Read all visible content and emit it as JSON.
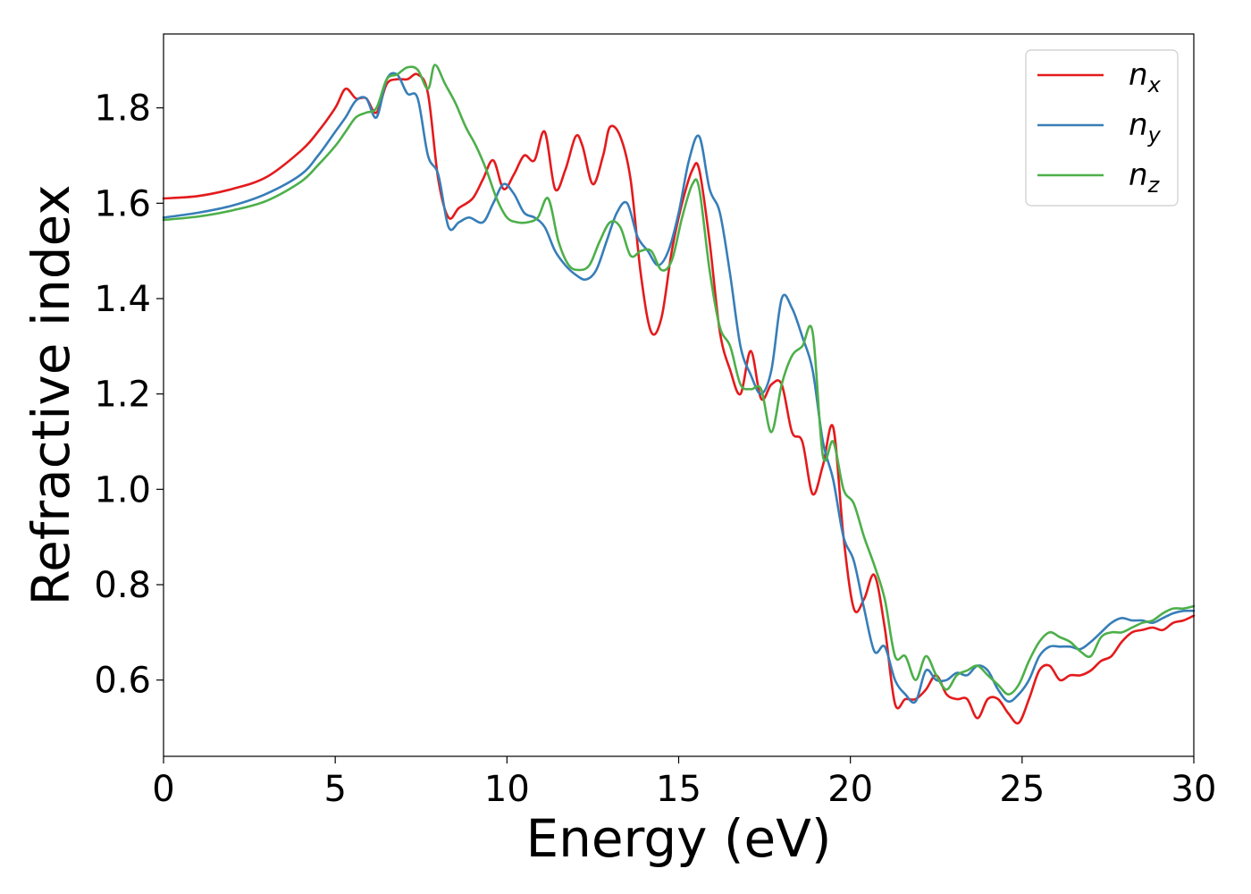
{
  "chart_data": {
    "type": "line",
    "title": "",
    "xlabel": "Energy (eV)",
    "ylabel": "Refractive index",
    "xlim": [
      0,
      30
    ],
    "ylim": [
      0.44,
      1.955
    ],
    "xticks": [
      0,
      5,
      10,
      15,
      20,
      25,
      30
    ],
    "xtick_labels": [
      "0",
      "5",
      "10",
      "15",
      "20",
      "25",
      "30"
    ],
    "yticks": [
      0.6,
      0.8,
      1.0,
      1.2,
      1.4,
      1.6,
      1.8
    ],
    "ytick_labels": [
      "0.6",
      "0.8",
      "1.0",
      "1.2",
      "1.4",
      "1.6",
      "1.8"
    ],
    "grid": false,
    "legend_position": "top-right",
    "series": [
      {
        "name": "n",
        "subscript": "x",
        "color": "#e41a1c",
        "x": [
          0,
          1,
          2,
          3,
          4,
          4.5,
          5,
          5.3,
          5.6,
          5.9,
          6.2,
          6.5,
          6.8,
          7.1,
          7.4,
          7.7,
          8.0,
          8.3,
          8.6,
          9.0,
          9.3,
          9.6,
          9.9,
          10.2,
          10.5,
          10.8,
          11.1,
          11.4,
          11.7,
          12.0,
          12.2,
          12.5,
          12.8,
          13.0,
          13.3,
          13.6,
          13.9,
          14.2,
          14.5,
          14.8,
          15.1,
          15.4,
          15.6,
          15.9,
          16.2,
          16.5,
          16.8,
          17.1,
          17.4,
          17.7,
          18.0,
          18.3,
          18.6,
          18.9,
          19.2,
          19.5,
          19.8,
          20.1,
          20.4,
          20.7,
          21.0,
          21.3,
          21.6,
          21.9,
          22.2,
          22.5,
          22.8,
          23.1,
          23.4,
          23.7,
          24.0,
          24.3,
          24.6,
          24.9,
          25.2,
          25.5,
          25.8,
          26.1,
          26.4,
          26.7,
          27.0,
          27.3,
          27.6,
          27.9,
          28.2,
          28.5,
          28.8,
          29.1,
          29.4,
          29.7,
          30.0
        ],
        "y": [
          1.61,
          1.615,
          1.63,
          1.655,
          1.71,
          1.75,
          1.8,
          1.84,
          1.82,
          1.82,
          1.79,
          1.85,
          1.86,
          1.86,
          1.87,
          1.83,
          1.65,
          1.57,
          1.59,
          1.61,
          1.65,
          1.69,
          1.63,
          1.66,
          1.7,
          1.69,
          1.75,
          1.63,
          1.67,
          1.74,
          1.72,
          1.64,
          1.7,
          1.76,
          1.74,
          1.65,
          1.45,
          1.33,
          1.36,
          1.5,
          1.6,
          1.67,
          1.67,
          1.52,
          1.33,
          1.25,
          1.2,
          1.29,
          1.19,
          1.22,
          1.22,
          1.12,
          1.1,
          0.99,
          1.05,
          1.13,
          0.9,
          0.75,
          0.77,
          0.82,
          0.71,
          0.55,
          0.56,
          0.56,
          0.58,
          0.61,
          0.57,
          0.56,
          0.56,
          0.52,
          0.56,
          0.56,
          0.53,
          0.51,
          0.56,
          0.62,
          0.63,
          0.6,
          0.61,
          0.61,
          0.62,
          0.64,
          0.65,
          0.68,
          0.7,
          0.705,
          0.71,
          0.705,
          0.72,
          0.725,
          0.735
        ]
      },
      {
        "name": "n",
        "subscript": "y",
        "color": "#377eb8",
        "x": [
          0,
          1,
          2,
          3,
          4,
          4.5,
          5,
          5.3,
          5.6,
          5.9,
          6.2,
          6.5,
          6.8,
          7.1,
          7.4,
          7.7,
          8.0,
          8.3,
          8.6,
          8.9,
          9.3,
          9.6,
          9.9,
          10.2,
          10.5,
          10.8,
          11.1,
          11.4,
          11.7,
          12.0,
          12.3,
          12.6,
          12.9,
          13.2,
          13.5,
          13.8,
          14.1,
          14.4,
          14.7,
          15.0,
          15.3,
          15.6,
          15.9,
          16.2,
          16.5,
          16.8,
          17.1,
          17.4,
          17.7,
          18.0,
          18.3,
          18.6,
          18.9,
          19.2,
          19.5,
          19.8,
          20.1,
          20.4,
          20.7,
          21.0,
          21.3,
          21.6,
          21.9,
          22.2,
          22.5,
          22.8,
          23.1,
          23.4,
          23.7,
          24.0,
          24.3,
          24.6,
          24.9,
          25.2,
          25.5,
          25.8,
          26.1,
          26.4,
          26.7,
          27.0,
          27.3,
          27.6,
          27.9,
          28.2,
          28.5,
          28.8,
          29.1,
          29.4,
          29.7,
          30.0
        ],
        "y": [
          1.57,
          1.58,
          1.595,
          1.62,
          1.66,
          1.7,
          1.75,
          1.78,
          1.815,
          1.82,
          1.78,
          1.86,
          1.87,
          1.83,
          1.82,
          1.7,
          1.66,
          1.55,
          1.56,
          1.57,
          1.56,
          1.6,
          1.64,
          1.62,
          1.58,
          1.57,
          1.55,
          1.5,
          1.47,
          1.45,
          1.44,
          1.46,
          1.52,
          1.58,
          1.6,
          1.53,
          1.5,
          1.47,
          1.5,
          1.58,
          1.69,
          1.74,
          1.63,
          1.58,
          1.45,
          1.3,
          1.24,
          1.2,
          1.25,
          1.4,
          1.38,
          1.32,
          1.25,
          1.1,
          1.02,
          0.9,
          0.85,
          0.75,
          0.66,
          0.67,
          0.6,
          0.57,
          0.555,
          0.62,
          0.6,
          0.6,
          0.615,
          0.61,
          0.63,
          0.62,
          0.58,
          0.555,
          0.57,
          0.6,
          0.65,
          0.67,
          0.67,
          0.67,
          0.665,
          0.68,
          0.7,
          0.72,
          0.73,
          0.725,
          0.725,
          0.72,
          0.73,
          0.74,
          0.745,
          0.745
        ]
      },
      {
        "name": "n",
        "subscript": "z",
        "color": "#4daf4a",
        "x": [
          0,
          1,
          2,
          3,
          4,
          4.5,
          5,
          5.3,
          5.6,
          5.9,
          6.2,
          6.5,
          6.8,
          7.1,
          7.4,
          7.7,
          7.9,
          8.2,
          8.5,
          8.8,
          9.1,
          9.4,
          9.7,
          10.0,
          10.3,
          10.6,
          10.9,
          11.2,
          11.5,
          11.8,
          12.1,
          12.4,
          12.7,
          13.0,
          13.3,
          13.6,
          13.9,
          14.2,
          14.5,
          14.8,
          15.1,
          15.4,
          15.6,
          15.9,
          16.2,
          16.5,
          16.8,
          17.1,
          17.4,
          17.7,
          18.0,
          18.3,
          18.6,
          18.9,
          19.2,
          19.5,
          19.8,
          20.1,
          20.4,
          20.7,
          21.0,
          21.3,
          21.6,
          21.9,
          22.2,
          22.5,
          22.8,
          23.1,
          23.4,
          23.7,
          24.0,
          24.3,
          24.6,
          24.9,
          25.2,
          25.5,
          25.8,
          26.1,
          26.4,
          26.7,
          27.0,
          27.3,
          27.6,
          27.9,
          28.2,
          28.5,
          28.8,
          29.1,
          29.4,
          29.7,
          30.0
        ],
        "y": [
          1.565,
          1.572,
          1.585,
          1.605,
          1.645,
          1.68,
          1.72,
          1.75,
          1.78,
          1.79,
          1.8,
          1.86,
          1.87,
          1.885,
          1.88,
          1.84,
          1.89,
          1.85,
          1.81,
          1.76,
          1.72,
          1.67,
          1.61,
          1.57,
          1.56,
          1.56,
          1.57,
          1.61,
          1.52,
          1.47,
          1.46,
          1.47,
          1.52,
          1.56,
          1.55,
          1.49,
          1.5,
          1.5,
          1.46,
          1.48,
          1.57,
          1.64,
          1.63,
          1.46,
          1.34,
          1.3,
          1.22,
          1.21,
          1.21,
          1.12,
          1.22,
          1.28,
          1.3,
          1.33,
          1.07,
          1.1,
          1.0,
          0.97,
          0.9,
          0.84,
          0.77,
          0.65,
          0.65,
          0.6,
          0.65,
          0.61,
          0.58,
          0.61,
          0.62,
          0.63,
          0.61,
          0.59,
          0.57,
          0.59,
          0.64,
          0.68,
          0.7,
          0.69,
          0.68,
          0.66,
          0.65,
          0.69,
          0.7,
          0.7,
          0.71,
          0.72,
          0.725,
          0.74,
          0.75,
          0.75,
          0.755
        ]
      }
    ]
  }
}
